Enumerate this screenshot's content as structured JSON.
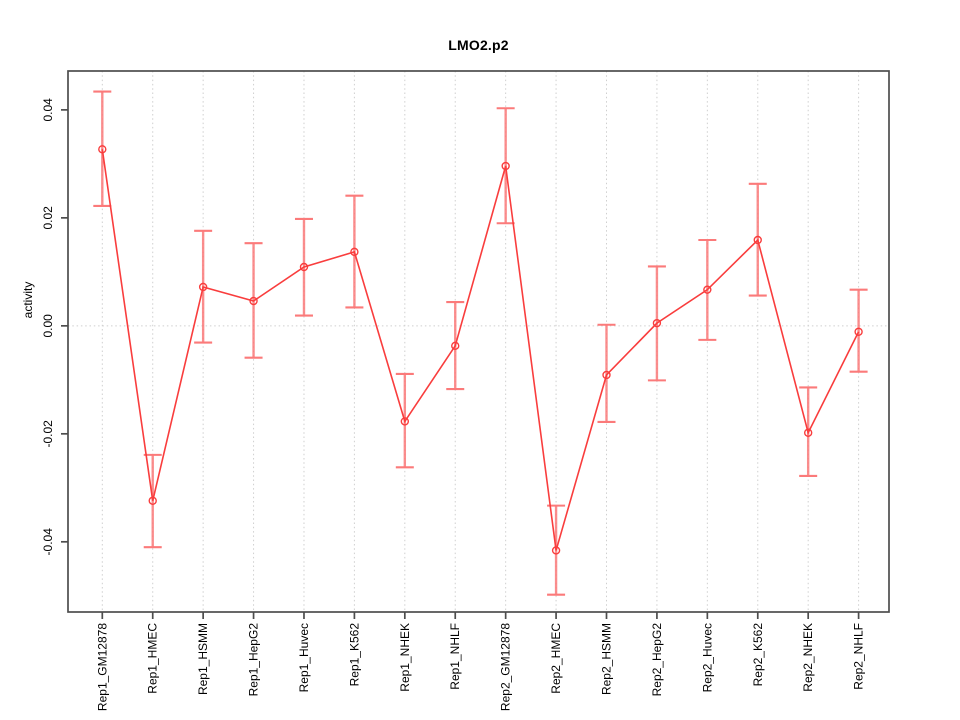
{
  "chart_data": {
    "type": "line",
    "title": "LMO2.p2",
    "ylabel": "activity",
    "xlabel": "",
    "categories": [
      "Rep1_GM12878",
      "Rep1_HMEC",
      "Rep1_HSMM",
      "Rep1_HepG2",
      "Rep1_Huvec",
      "Rep1_K562",
      "Rep1_NHEK",
      "Rep1_NHLF",
      "Rep2_GM12878",
      "Rep2_HMEC",
      "Rep2_HSMM",
      "Rep2_HepG2",
      "Rep2_Huvec",
      "Rep2_K562",
      "Rep2_NHEK",
      "Rep2_NHLF"
    ],
    "series": [
      {
        "name": "activity",
        "marker": "open-circle",
        "values": [
          0.0327,
          -0.0324,
          0.0072,
          0.0046,
          0.0109,
          0.0137,
          -0.0177,
          -0.0037,
          0.0296,
          -0.0416,
          -0.0091,
          0.0005,
          0.0067,
          0.0159,
          -0.0198,
          -0.0011
        ],
        "error_high": [
          0.0434,
          -0.0239,
          0.0176,
          0.0153,
          0.0198,
          0.0241,
          -0.0089,
          0.0044,
          0.0403,
          -0.0333,
          0.0002,
          0.011,
          0.0159,
          0.0263,
          -0.0114,
          0.0067
        ],
        "error_low": [
          0.0222,
          -0.041,
          -0.0031,
          -0.0059,
          0.0019,
          0.0034,
          -0.0262,
          -0.0117,
          0.019,
          -0.0498,
          -0.0178,
          -0.0101,
          -0.0026,
          0.0056,
          -0.0278,
          -0.0085
        ]
      }
    ],
    "ylim": [
      -0.053,
      0.0472
    ],
    "yticks": [
      "-0.04",
      "-0.02",
      "0.00",
      "0.02",
      "0.04"
    ],
    "grid": {
      "vertical": "dotted line at each category",
      "horizontal": "dotted line at y = 0 only"
    },
    "legend": "none",
    "colors": {
      "series_line": "#f93d3d",
      "error_bar": "#fb7a7a",
      "gridline": "#cfcfcf",
      "axis": "#4d4d4d",
      "text": "#000000",
      "background": "#ffffff"
    }
  }
}
